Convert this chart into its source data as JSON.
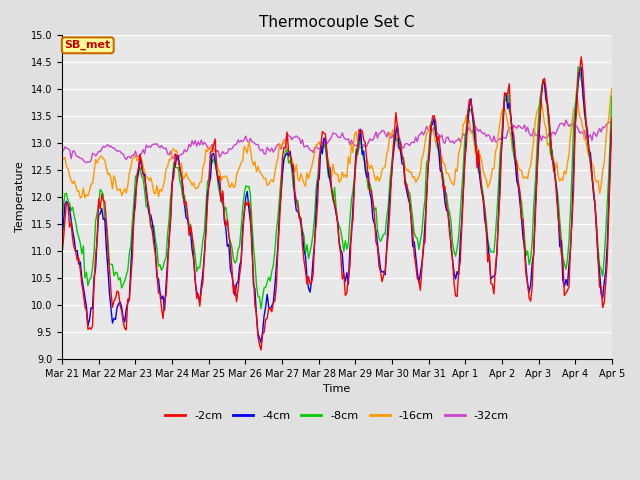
{
  "title": "Thermocouple Set C",
  "xlabel": "Time",
  "ylabel": "Temperature",
  "ylim": [
    9.0,
    15.0
  ],
  "yticks": [
    9.0,
    9.5,
    10.0,
    10.5,
    11.0,
    11.5,
    12.0,
    12.5,
    13.0,
    13.5,
    14.0,
    14.5,
    15.0
  ],
  "fig_bg": "#e0e0e0",
  "plot_bg": "#e8e8e8",
  "grid_color": "#ffffff",
  "legend_label": "SB_met",
  "legend_text_color": "#cc0000",
  "legend_bg": "#ffff99",
  "legend_border": "#cc6600",
  "colors": {
    "-2cm": "#ff0000",
    "-4cm": "#0000ff",
    "-8cm": "#00cc00",
    "-16cm": "#ff9900",
    "-32cm": "#cc44cc"
  },
  "linewidth": 1.0,
  "title_fontsize": 11,
  "tick_fontsize": 7,
  "axis_label_fontsize": 8,
  "legend_fontsize": 8
}
